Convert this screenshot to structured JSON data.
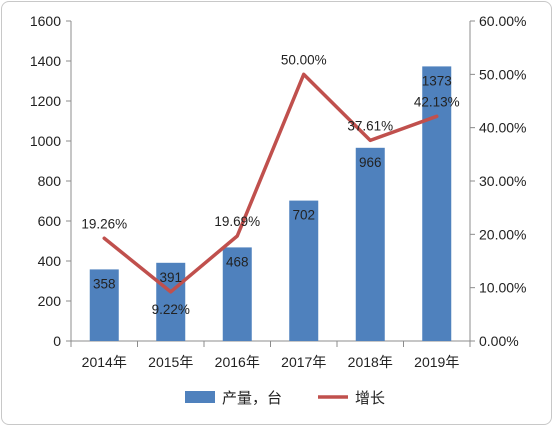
{
  "chart_data": {
    "type": "bar+line",
    "categories": [
      "2014年",
      "2015年",
      "2016年",
      "2017年",
      "2018年",
      "2019年"
    ],
    "series": [
      {
        "name": "产量，台",
        "type": "bar",
        "axis": "left",
        "values": [
          358,
          391,
          468,
          702,
          966,
          1373
        ],
        "labels": [
          "358",
          "391",
          "468",
          "702",
          "966",
          "1373"
        ],
        "color": "#4f81bd"
      },
      {
        "name": "增长",
        "type": "line",
        "axis": "right",
        "values": [
          19.26,
          9.22,
          19.69,
          50.0,
          37.61,
          42.13
        ],
        "labels": [
          "19.26%",
          "9.22%",
          "19.69%",
          "50.00%",
          "37.61%",
          "42.13%"
        ],
        "color": "#c0504d"
      }
    ],
    "y_left": {
      "range": [
        0,
        1600
      ],
      "ticks": [
        "0",
        "200",
        "400",
        "600",
        "800",
        "1000",
        "1200",
        "1400",
        "1600"
      ]
    },
    "y_right": {
      "range": [
        0,
        60
      ],
      "unit": "%",
      "ticks": [
        "0.00%",
        "10.00%",
        "20.00%",
        "30.00%",
        "40.00%",
        "50.00%",
        "60.00%"
      ]
    },
    "grid": false,
    "legend": "bottom"
  }
}
